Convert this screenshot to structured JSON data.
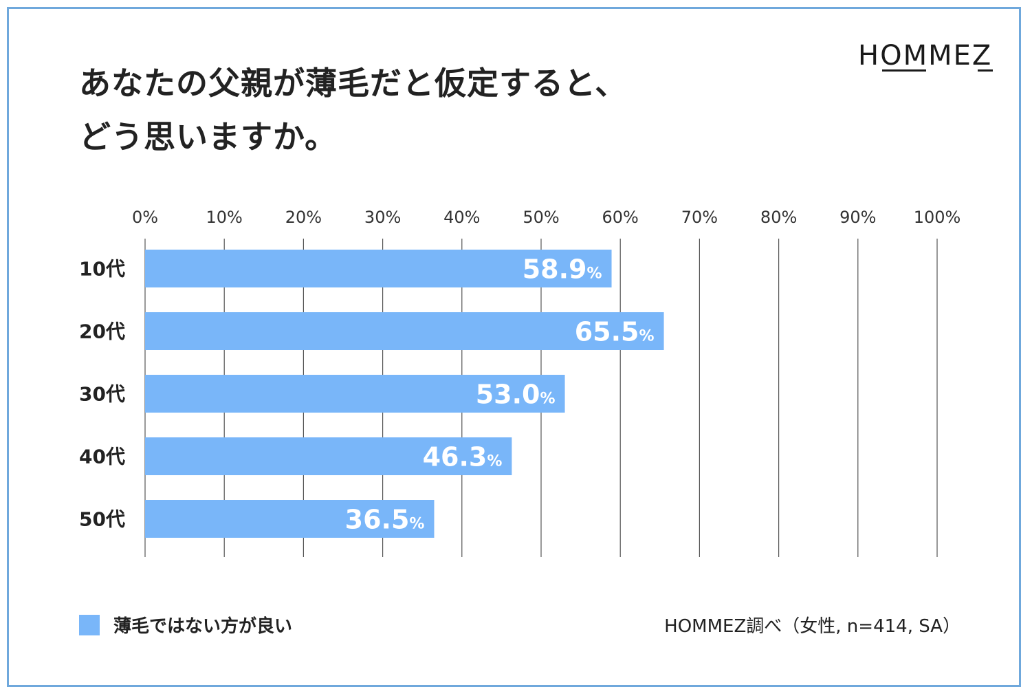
{
  "brand": {
    "logo_text": "HOMMEZ"
  },
  "colors": {
    "bar": "#79b6f9",
    "frame": "#6fa8dc",
    "grid": "#555555"
  },
  "chart_data": {
    "type": "bar",
    "orientation": "horizontal",
    "title_lines": [
      "あなたの父親が薄毛だと仮定すると、",
      "どう思いますか。"
    ],
    "categories": [
      "10代",
      "20代",
      "30代",
      "40代",
      "50代"
    ],
    "series": [
      {
        "name": "薄毛ではない方が良い",
        "values": [
          58.9,
          65.5,
          53.0,
          46.3,
          36.5
        ]
      }
    ],
    "value_labels": [
      "58.9",
      "65.5",
      "53.0",
      "46.3",
      "36.5"
    ],
    "value_unit": "%",
    "x_ticks": [
      "0%",
      "10%",
      "20%",
      "30%",
      "40%",
      "50%",
      "60%",
      "70%",
      "80%",
      "90%",
      "100%"
    ],
    "xlim": [
      0,
      100
    ],
    "grid": true,
    "legend_position": "bottom-left"
  },
  "legend": {
    "label": "薄毛ではない方が良い"
  },
  "source": "HOMMEZ調べ（女性, n=414, SA）"
}
